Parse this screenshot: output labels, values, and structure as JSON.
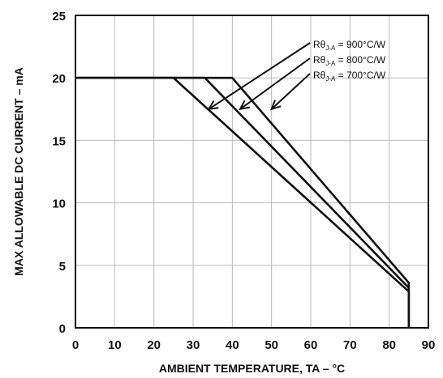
{
  "chart_data": {
    "type": "line",
    "title": "",
    "xlabel": "AMBIENT TEMPERATURE, TA – °C",
    "ylabel": "MAX ALLOWABLE DC CURRENT – mA",
    "xlim": [
      0,
      90
    ],
    "ylim": [
      0,
      25
    ],
    "xticks": [
      "0",
      "10",
      "20",
      "30",
      "40",
      "50",
      "60",
      "70",
      "80",
      "90"
    ],
    "yticks": [
      "0",
      "5",
      "10",
      "15",
      "20",
      "25"
    ],
    "grid": true,
    "series": [
      {
        "name": "RθJ-A = 900°C/W",
        "sym": "Rθ",
        "sub": "J-A",
        "val": " = 900°C/W",
        "arrow_to": [
          34,
          17.5
        ],
        "points": [
          [
            0,
            20
          ],
          [
            25,
            20
          ],
          [
            85,
            2.9
          ],
          [
            85,
            0
          ]
        ]
      },
      {
        "name": "RθJ-A = 800°C/W",
        "sym": "Rθ",
        "sub": "J-A",
        "val": " = 800°C/W",
        "arrow_to": [
          42,
          17.5
        ],
        "points": [
          [
            0,
            20
          ],
          [
            33,
            20
          ],
          [
            85,
            3.2
          ],
          [
            85,
            0
          ]
        ]
      },
      {
        "name": "RθJ-A = 700°C/W",
        "sym": "Rθ",
        "sub": "J-A",
        "val": " = 700°C/W",
        "arrow_to": [
          50,
          17.5
        ],
        "points": [
          [
            0,
            20
          ],
          [
            40,
            20
          ],
          [
            85,
            3.6
          ],
          [
            85,
            0
          ]
        ]
      }
    ]
  }
}
